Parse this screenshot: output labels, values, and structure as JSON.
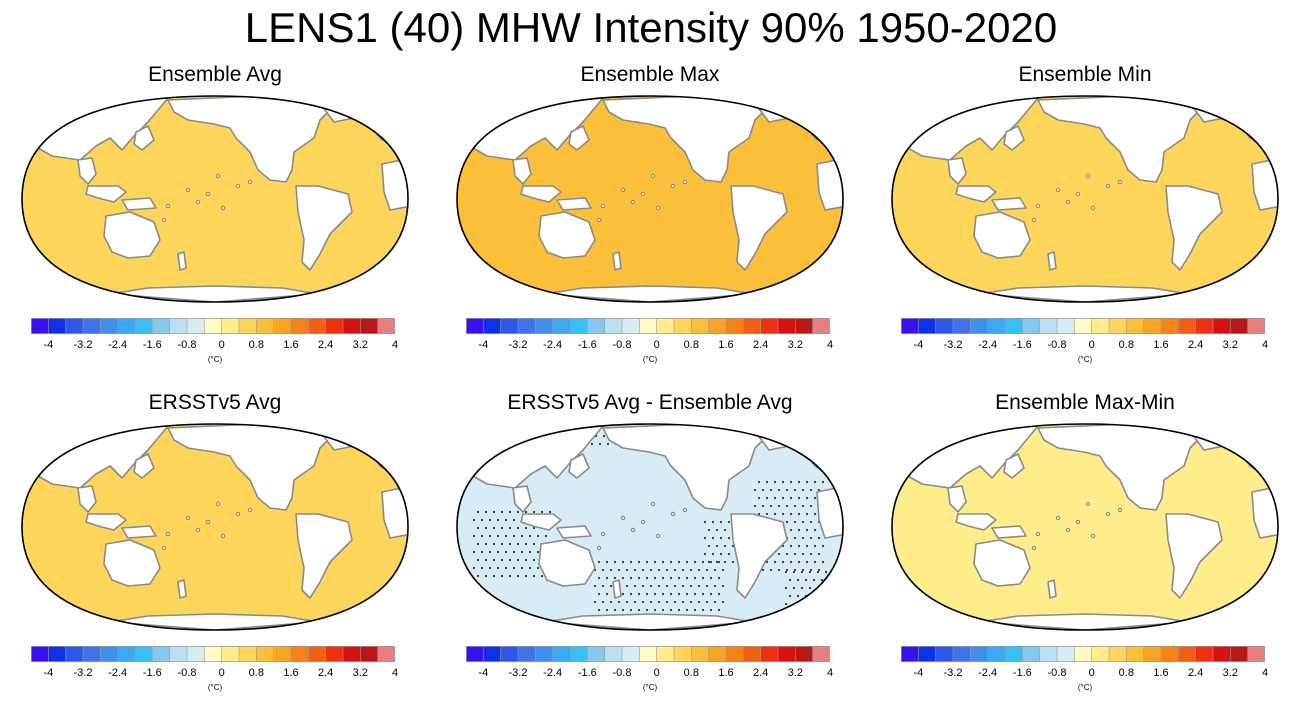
{
  "figure_title": "LENS1 (40) MHW Intensity 90% 1950-2020",
  "colorbar": {
    "ticks": [
      "-4",
      "-3.2",
      "-2.4",
      "-1.6",
      "-0.8",
      "0",
      "0.8",
      "1.6",
      "2.4",
      "3.2",
      "4"
    ],
    "unit": "(°C)",
    "colors": [
      "#3a10f0",
      "#1030e8",
      "#2f57ea",
      "#3e73ec",
      "#3e8fee",
      "#3aa8f2",
      "#36c0f6",
      "#86c8ee",
      "#bce0f2",
      "#d8ecf5",
      "#fffbc4",
      "#ffec8a",
      "#fdd55a",
      "#fbbf3a",
      "#f9a322",
      "#f78316",
      "#f45f12",
      "#f02f10",
      "#d81010",
      "#b81818",
      "#e68080"
    ]
  },
  "panels": [
    {
      "title": "Ensemble Avg",
      "style": "avg"
    },
    {
      "title": "Ensemble Max",
      "style": "max"
    },
    {
      "title": "Ensemble Min",
      "style": "min"
    },
    {
      "title": "ERSSTv5 Avg",
      "style": "obs"
    },
    {
      "title": "ERSSTv5 Avg - Ensemble Avg",
      "style": "diff"
    },
    {
      "title": "Ensemble Max-Min",
      "style": "range"
    }
  ],
  "map_colors": {
    "land": "#ffffff",
    "coast": "#8a8a8a",
    "outline": "#000000"
  },
  "chart_data": {
    "type": "map",
    "title": "LENS1 (40) MHW Intensity 90% 1950-2020",
    "projection": "Robinson (Pacific-centered)",
    "colorbar_range": [
      -4,
      4
    ],
    "colorbar_unit": "°C",
    "panels": [
      "Ensemble Avg",
      "Ensemble Max",
      "Ensemble Min",
      "ERSSTv5 Avg",
      "ERSSTv5 Avg - Ensemble Avg",
      "Ensemble Max-Min"
    ]
  }
}
